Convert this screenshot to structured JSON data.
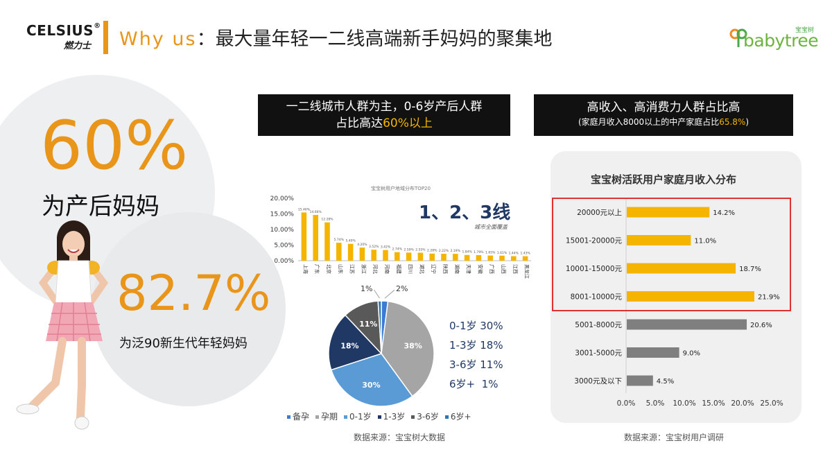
{
  "header": {
    "brand": "CELSIUS",
    "brand_reg": "®",
    "brand_sub": "燃力士",
    "title_en": "Why us",
    "title_sep": "：",
    "title_cn": "最大量年轻一二线高端新手妈妈的聚集地",
    "partner_logo_text": "babytree",
    "partner_logo_cn": "宝宝树"
  },
  "highlights": {
    "stat1_value": "60%",
    "stat1_label": "为产后妈妈",
    "stat2_value": "82.7%",
    "stat2_label": "为泛90新生代年轻妈妈"
  },
  "box_left": {
    "line1": "一二线城市人群为主，0-6岁产后人群",
    "line2_pre": "占比高达",
    "line2_hl": "60%以上"
  },
  "box_right": {
    "line1": "高收入、高消费力人群占比高",
    "line2_pre": "(家庭月收入8000以上的中产家庭占比",
    "line2_hl": "65.8%",
    "line2_post": ")"
  },
  "badge": {
    "big": "1、2、3线",
    "small": "城市全面覆盖"
  },
  "legend_side": [
    "0-1岁 30%",
    "1-3岁 18%",
    "3-6岁 11%",
    "6岁+  1%"
  ],
  "source_left": "数据来源：宝宝树大数据",
  "source_right": "数据来源：宝宝树用户调研",
  "colors": {
    "accent": "#e8951a",
    "bar": "#f4b400",
    "gray_bar": "#7f7f7f",
    "highlight_box": "#e03030"
  },
  "chart_data": [
    {
      "type": "bar",
      "title": "宝宝树用户地域分布TOP20",
      "categories": [
        "上海",
        "广东",
        "北京",
        "山东",
        "江苏",
        "浙江",
        "河北",
        "河南",
        "福建",
        "四川",
        "湖北",
        "辽宁",
        "陕西",
        "湖南",
        "天津",
        "安徽",
        "广西",
        "山西",
        "江西",
        "黑龙江"
      ],
      "values": [
        15.46,
        14.66,
        12.28,
        5.74,
        5.4,
        4.2,
        3.52,
        3.42,
        2.74,
        2.59,
        2.55,
        2.28,
        2.22,
        2.19,
        1.84,
        1.79,
        1.65,
        1.61,
        1.44,
        1.43
      ],
      "value_labels": [
        "15.46%",
        "14.66%",
        "12.28%",
        "5.74%",
        "5.40%",
        "4.20%",
        "3.52%",
        "3.42%",
        "2.74%",
        "2.59%",
        "2.55%",
        "2.28%",
        "2.22%",
        "2.19%",
        "1.84%",
        "1.79%",
        "1.65%",
        "1.61%",
        "1.44%",
        "1.43%"
      ],
      "yticks": [
        "0.00%",
        "5.00%",
        "10.00%",
        "15.00%",
        "20.00%"
      ],
      "ylim": [
        0,
        20
      ]
    },
    {
      "type": "pie",
      "labels": [
        "备孕",
        "孕期",
        "0-1岁",
        "1-3岁",
        "3-6岁",
        "6岁+"
      ],
      "values": [
        2,
        38,
        30,
        18,
        11,
        1
      ],
      "value_labels": [
        "2%",
        "38%",
        "30%",
        "18%",
        "11%",
        "1%"
      ],
      "colors": [
        "#3a7bd5",
        "#a5a5a5",
        "#5b9bd5",
        "#203864",
        "#595959",
        "#2e75b6"
      ]
    },
    {
      "type": "bar",
      "orientation": "horizontal",
      "title": "宝宝树活跃用户家庭月收入分布",
      "categories": [
        "20000元以上",
        "15001-20000元",
        "10001-15000元",
        "8001-10000元",
        "5001-8000元",
        "3001-5000元",
        "3000元及以下"
      ],
      "values": [
        14.2,
        11.0,
        18.7,
        21.9,
        20.6,
        9.0,
        4.5
      ],
      "value_labels": [
        "14.2%",
        "11.0%",
        "18.7%",
        "21.9%",
        "20.6%",
        "9.0%",
        "4.5%"
      ],
      "bar_colors": [
        "#f4b400",
        "#f4b400",
        "#f4b400",
        "#f4b400",
        "#7f7f7f",
        "#7f7f7f",
        "#7f7f7f"
      ],
      "xticks": [
        "0.0%",
        "5.0%",
        "10.0%",
        "15.0%",
        "20.0%",
        "25.0%"
      ],
      "xlim": [
        0,
        25
      ]
    }
  ]
}
